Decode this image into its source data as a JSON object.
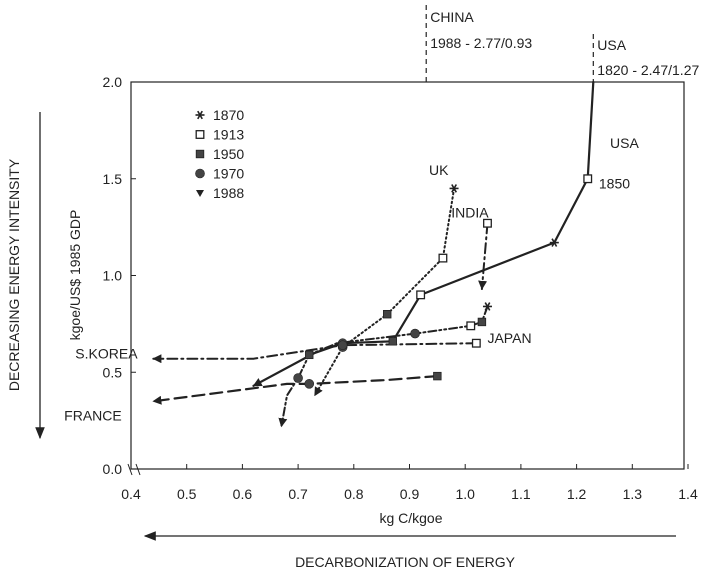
{
  "chart_data": {
    "type": "line",
    "xlabel": "kg C/kgoe",
    "ylabel": "kgoe/US$ 1985 GDP",
    "outer_y_label": "DECREASING ENERGY INTENSITY",
    "outer_x_label": "DECARBONIZATION OF ENERGY",
    "xlim": [
      0.4,
      1.4
    ],
    "ylim": [
      0.0,
      2.0
    ],
    "x_ticks": [
      "0.4",
      "0.5",
      "0.6",
      "0.7",
      "0.8",
      "0.9",
      "1.0",
      "1.1",
      "1.2",
      "1.3",
      "1.4"
    ],
    "y_ticks": [
      "0.0",
      "0.5",
      "1.0",
      "1.5",
      "2.0"
    ],
    "grid": false,
    "legend_position": "top-left",
    "legend": [
      {
        "label": "1870",
        "marker": "star"
      },
      {
        "label": "1913",
        "marker": "open-square"
      },
      {
        "label": "1950",
        "marker": "filled-square"
      },
      {
        "label": "1970",
        "marker": "circle"
      },
      {
        "label": "1988",
        "marker": "triangle-down"
      }
    ],
    "series": [
      {
        "name": "USA",
        "style": "solid",
        "points": [
          [
            1.23,
            2.0
          ],
          [
            1.22,
            1.5
          ],
          [
            1.16,
            1.17
          ],
          [
            0.92,
            0.9
          ],
          [
            0.87,
            0.66
          ],
          [
            0.78,
            0.65
          ],
          [
            0.73,
            0.6
          ],
          [
            0.62,
            0.43
          ]
        ],
        "markers": [
          "none",
          "open-square",
          "star",
          "open-square",
          "filled-square",
          "circle",
          "none",
          "arrow"
        ]
      },
      {
        "name": "UK",
        "style": "dotted",
        "points": [
          [
            0.98,
            1.45
          ],
          [
            0.96,
            1.09
          ],
          [
            0.86,
            0.8
          ],
          [
            0.78,
            0.63
          ],
          [
            0.73,
            0.38
          ]
        ],
        "markers": [
          "star",
          "open-square",
          "filled-square",
          "circle",
          "arrow"
        ]
      },
      {
        "name": "INDIA",
        "style": "dash-dot",
        "points": [
          [
            1.04,
            1.27
          ],
          [
            1.03,
            0.93
          ]
        ],
        "markers": [
          "open-square",
          "arrow"
        ]
      },
      {
        "name": "JAPAN",
        "style": "dash-dot-dot",
        "points": [
          [
            1.04,
            0.84
          ],
          [
            1.03,
            0.76
          ],
          [
            1.01,
            0.74
          ],
          [
            0.91,
            0.7
          ],
          [
            0.77,
            0.65
          ],
          [
            0.72,
            0.59
          ],
          [
            0.7,
            0.47
          ],
          [
            0.68,
            0.38
          ],
          [
            0.67,
            0.22
          ]
        ],
        "markers": [
          "star",
          "filled-square",
          "open-square",
          "circle",
          "none",
          "filled-square",
          "circle",
          "none",
          "arrow"
        ]
      },
      {
        "name": "S.KOREA",
        "style": "dash-dot",
        "points": [
          [
            1.02,
            0.65
          ],
          [
            0.78,
            0.64
          ],
          [
            0.62,
            0.57
          ],
          [
            0.44,
            0.57
          ]
        ],
        "markers": [
          "open-square",
          "circle",
          "none",
          "arrow"
        ]
      },
      {
        "name": "FRANCE",
        "style": "dashed",
        "points": [
          [
            0.95,
            0.48
          ],
          [
            0.86,
            0.46
          ],
          [
            0.72,
            0.44
          ],
          [
            0.68,
            0.44
          ],
          [
            0.6,
            0.41
          ],
          [
            0.44,
            0.35
          ]
        ],
        "markers": [
          "filled-square",
          "none",
          "circle",
          "none",
          "none",
          "arrow"
        ]
      }
    ],
    "annotations": [
      {
        "text": "UK",
        "x": 0.935,
        "y": 1.52
      },
      {
        "text": "INDIA",
        "x": 0.975,
        "y": 1.3
      },
      {
        "text": "JAPAN",
        "x": 1.04,
        "y": 0.65
      },
      {
        "text": "S.KOREA",
        "x": 0.3,
        "y": 0.57
      },
      {
        "text": "FRANCE",
        "x": 0.28,
        "y": 0.25
      },
      {
        "text": "USA",
        "x": 1.26,
        "y": 1.66
      },
      {
        "text": "1850",
        "x": 1.24,
        "y": 1.45
      }
    ],
    "offscale_labels": [
      {
        "country": "CHINA",
        "value": "1988 - 2.77/0.93",
        "x": 0.93
      },
      {
        "country": "USA",
        "value": "1820 - 2.47/1.27",
        "x": 1.23
      }
    ]
  }
}
